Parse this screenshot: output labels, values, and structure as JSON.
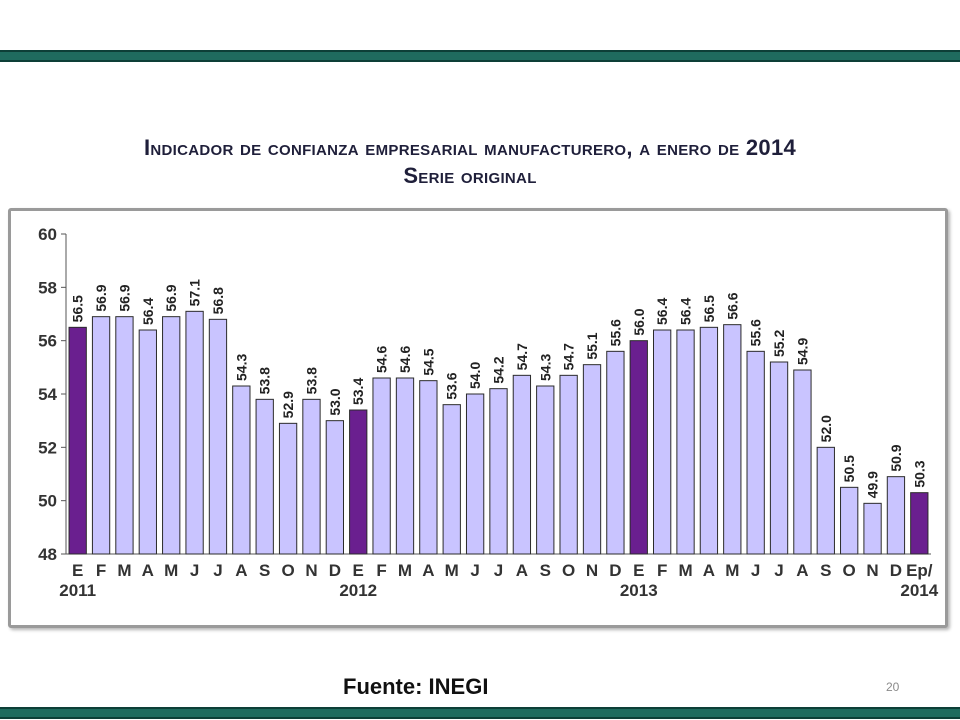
{
  "slide": {
    "title_line1": "Indicador de confianza empresarial manufacturero, a enero de 2014",
    "title_line2": "Serie original",
    "source": "Fuente: INEGI",
    "page_number": "20"
  },
  "colors": {
    "band": "#1f6b5e",
    "bar_fill": "#c9c4ff",
    "bar_highlight": "#6a1f8f",
    "bar_border": "#2b2b2b"
  },
  "chart_data": {
    "type": "bar",
    "title": "Indicador de confianza empresarial manufacturero, a enero de 2014",
    "subtitle": "Serie original",
    "categories": [
      "E",
      "F",
      "M",
      "A",
      "M",
      "J",
      "J",
      "A",
      "S",
      "O",
      "N",
      "D",
      "E",
      "F",
      "M",
      "A",
      "M",
      "J",
      "J",
      "A",
      "S",
      "O",
      "N",
      "D",
      "E",
      "F",
      "M",
      "A",
      "M",
      "J",
      "J",
      "A",
      "S",
      "O",
      "N",
      "D",
      "Ep/"
    ],
    "values": [
      56.5,
      56.9,
      56.9,
      56.4,
      56.9,
      57.1,
      56.8,
      54.3,
      53.8,
      52.9,
      53.8,
      53.0,
      53.4,
      54.6,
      54.6,
      54.5,
      53.6,
      54.0,
      54.2,
      54.7,
      54.3,
      54.7,
      55.1,
      55.6,
      56.0,
      56.4,
      56.4,
      56.5,
      56.6,
      55.6,
      55.2,
      54.9,
      52.0,
      50.5,
      49.9,
      50.9,
      50.3
    ],
    "value_labels": [
      "56.5",
      "56.9",
      "56.9",
      "56.4",
      "56.9",
      "57.1",
      "56.8",
      "54.3",
      "53.8",
      "52.9",
      "53.8",
      "53.0",
      "53.4",
      "54.6",
      "54.6",
      "54.5",
      "53.6",
      "54.0",
      "54.2",
      "54.7",
      "54.3",
      "54.7",
      "55.1",
      "55.6",
      "56.0",
      "56.4",
      "56.4",
      "56.5",
      "56.6",
      "55.6",
      "55.2",
      "54.9",
      "52.0",
      "50.5",
      "49.9",
      "50.9",
      "50.3"
    ],
    "highlighted_indices": [
      0,
      12,
      24,
      36
    ],
    "year_labels": [
      {
        "index": 0,
        "label": "2011"
      },
      {
        "index": 12,
        "label": "2012"
      },
      {
        "index": 24,
        "label": "2013"
      },
      {
        "index": 36,
        "label": "2014"
      }
    ],
    "yticks": [
      "48",
      "50",
      "52",
      "54",
      "56",
      "58",
      "60"
    ],
    "ylim": [
      48,
      60
    ],
    "grid": false,
    "legend": "none"
  }
}
